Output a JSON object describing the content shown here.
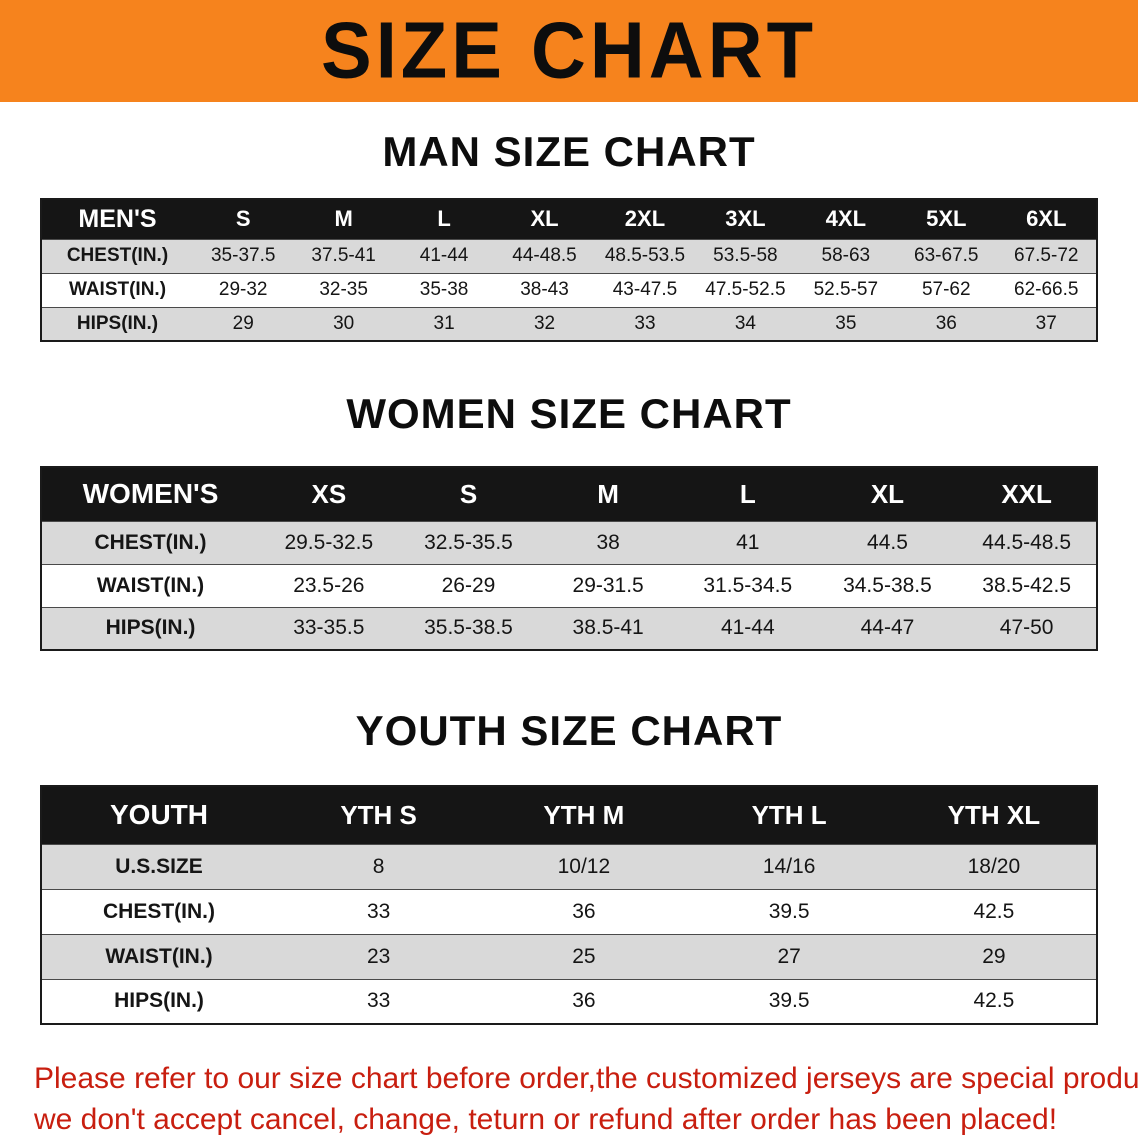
{
  "banner": {
    "title": "SIZE CHART",
    "bg_color": "#f6831d"
  },
  "sections": [
    {
      "id": "men",
      "heading": "MAN SIZE CHART",
      "header": [
        "MEN'S",
        "S",
        "M",
        "L",
        "XL",
        "2XL",
        "3XL",
        "4XL",
        "5XL",
        "6XL"
      ],
      "rows": [
        [
          "CHEST(IN.)",
          "35-37.5",
          "37.5-41",
          "41-44",
          "44-48.5",
          "48.5-53.5",
          "53.5-58",
          "58-63",
          "63-67.5",
          "67.5-72"
        ],
        [
          "WAIST(IN.)",
          "29-32",
          "32-35",
          "35-38",
          "38-43",
          "43-47.5",
          "47.5-52.5",
          "52.5-57",
          "57-62",
          "62-66.5"
        ],
        [
          "HIPS(IN.)",
          "29",
          "30",
          "31",
          "32",
          "33",
          "34",
          "35",
          "36",
          "37"
        ]
      ]
    },
    {
      "id": "women",
      "heading": "WOMEN SIZE CHART",
      "header": [
        "WOMEN'S",
        "XS",
        "S",
        "M",
        "L",
        "XL",
        "XXL"
      ],
      "rows": [
        [
          "CHEST(IN.)",
          "29.5-32.5",
          "32.5-35.5",
          "38",
          "41",
          "44.5",
          "44.5-48.5"
        ],
        [
          "WAIST(IN.)",
          "23.5-26",
          "26-29",
          "29-31.5",
          "31.5-34.5",
          "34.5-38.5",
          "38.5-42.5"
        ],
        [
          "HIPS(IN.)",
          "33-35.5",
          "35.5-38.5",
          "38.5-41",
          "41-44",
          "44-47",
          "47-50"
        ]
      ]
    },
    {
      "id": "youth",
      "heading": "YOUTH SIZE CHART",
      "header": [
        "YOUTH",
        "YTH S",
        "YTH M",
        "YTH L",
        "YTH XL"
      ],
      "rows": [
        [
          "U.S.SIZE",
          "8",
          "10/12",
          "14/16",
          "18/20"
        ],
        [
          "CHEST(IN.)",
          "33",
          "36",
          "39.5",
          "42.5"
        ],
        [
          "WAIST(IN.)",
          "23",
          "25",
          "27",
          "29"
        ],
        [
          "HIPS(IN.)",
          "33",
          "36",
          "39.5",
          "42.5"
        ]
      ]
    }
  ],
  "footer": {
    "line1": "Please refer to our size chart before order,the customized jerseys are special products,",
    "line2": "we don't accept cancel, change, teturn or refund after order has been placed!",
    "color": "#c81e0f"
  }
}
